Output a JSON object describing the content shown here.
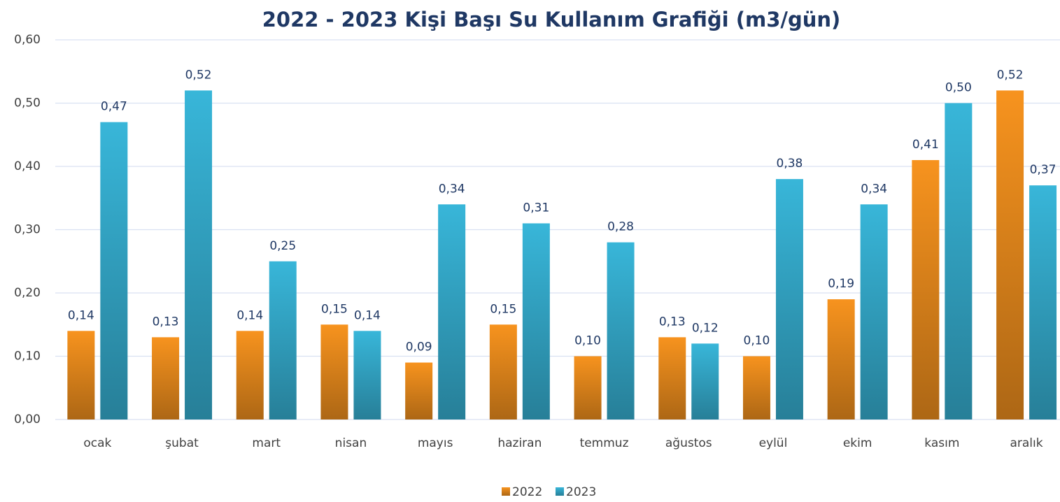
{
  "chart_data": {
    "type": "bar",
    "title": "2022 - 2023 Kişi Başı Su Kullanım Grafiği (m3/gün)",
    "categories": [
      "ocak",
      "şubat",
      "mart",
      "nisan",
      "mayıs",
      "haziran",
      "temmuz",
      "ağustos",
      "eylül",
      "ekim",
      "kasım",
      "aralık"
    ],
    "series": [
      {
        "name": "2022",
        "color": "#f7931e",
        "values": [
          0.14,
          0.13,
          0.14,
          0.15,
          0.09,
          0.15,
          0.1,
          0.13,
          0.1,
          0.19,
          0.41,
          0.52
        ],
        "value_labels": [
          "0,14",
          "0,13",
          "0,14",
          "0,15",
          "0,09",
          "0,15",
          "0,10",
          "0,13",
          "0,10",
          "0,19",
          "0,41",
          "0,52"
        ]
      },
      {
        "name": "2023",
        "color": "#38b6d9",
        "values": [
          0.47,
          0.52,
          0.25,
          0.14,
          0.34,
          0.31,
          0.28,
          0.12,
          0.38,
          0.34,
          0.5,
          0.37
        ],
        "value_labels": [
          "0,47",
          "0,52",
          "0,25",
          "0,14",
          "0,34",
          "0,31",
          "0,28",
          "0,12",
          "0,38",
          "0,34",
          "0,50",
          "0,37"
        ]
      }
    ],
    "ylim": [
      0,
      0.6
    ],
    "yticks": [
      {
        "value": 0,
        "label": "0,00"
      },
      {
        "value": 0.1,
        "label": "0,10"
      },
      {
        "value": 0.2,
        "label": "0,20"
      },
      {
        "value": 0.3,
        "label": "0,30"
      },
      {
        "value": 0.4,
        "label": "0,40"
      },
      {
        "value": 0.5,
        "label": "0,50"
      },
      {
        "value": 0.6,
        "label": "0,60"
      }
    ],
    "grid": true,
    "legend": "bottom"
  }
}
